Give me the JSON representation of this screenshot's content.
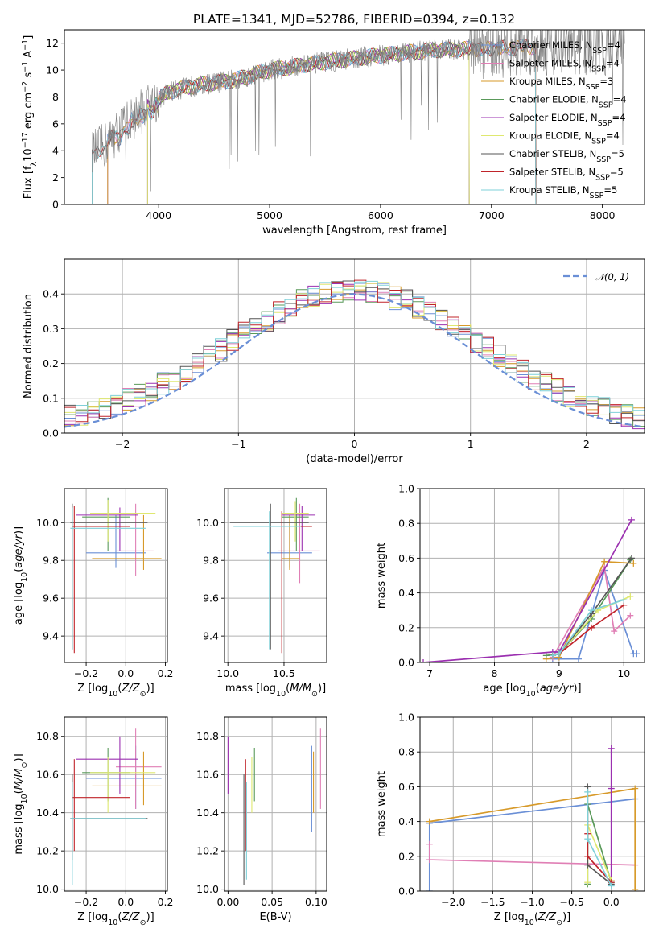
{
  "title": "PLATE=1341, MJD=52786, FIBERID=0394, z=0.132",
  "colors": {
    "Chabrier MILES": "#6a8fd6",
    "Salpeter MILES": "#e07fb5",
    "Kroupa MILES": "#d79a2a",
    "Chabrier ELODIE": "#5a9a5a",
    "Salpeter ELODIE": "#9b30b0",
    "Kroupa ELODIE": "#dfe870",
    "Chabrier STELIB": "#555555",
    "Salpeter STELIB": "#c0242a",
    "Kroupa STELIB": "#7fd0d8",
    "data": "#808080",
    "gaussian": "#6a8fd6",
    "orange": "#e07a28"
  },
  "chart_data": [
    {
      "id": "spectrum",
      "type": "line",
      "xlabel": "wavelength [Angstrom, rest frame]",
      "ylabel": "Flux [f_λ 10^-17 erg cm^-2 s^-1 A^-1]",
      "xlim": [
        3150,
        8380
      ],
      "ylim": [
        0,
        13
      ],
      "xticks": [
        4000,
        5000,
        6000,
        7000,
        8000
      ],
      "yticks": [
        0,
        2,
        4,
        6,
        8,
        10,
        12
      ],
      "grid": false,
      "legend_position": "right",
      "legend": [
        {
          "name": "Chabrier MILES",
          "sub": "4"
        },
        {
          "name": "Salpeter MILES",
          "sub": "4"
        },
        {
          "name": "Kroupa MILES",
          "sub": "3"
        },
        {
          "name": "Chabrier ELODIE",
          "sub": "4"
        },
        {
          "name": "Salpeter ELODIE",
          "sub": "4"
        },
        {
          "name": "Kroupa ELODIE",
          "sub": "4"
        },
        {
          "name": "Chabrier STELIB",
          "sub": "5"
        },
        {
          "name": "Salpeter STELIB",
          "sub": "5"
        },
        {
          "name": "Kroupa STELIB",
          "sub": "5"
        }
      ],
      "data_trend": {
        "x": [
          3400,
          3500,
          3700,
          3900,
          4100,
          4300,
          4700,
          5000,
          5500,
          6000,
          6500,
          7000,
          7500,
          8000,
          8200
        ],
        "y": [
          3.8,
          4.3,
          6.0,
          7.3,
          8.4,
          8.8,
          9.3,
          10.0,
          10.6,
          11.1,
          11.5,
          11.6,
          11.8,
          11.7,
          11.8
        ]
      },
      "model_ranges": [
        {
          "name": "Chabrier MILES",
          "x0": 3540,
          "x1": 7410
        },
        {
          "name": "Salpeter MILES",
          "x0": 3540,
          "x1": 7410
        },
        {
          "name": "Kroupa MILES",
          "x0": 3540,
          "x1": 7410
        },
        {
          "name": "Chabrier ELODIE",
          "x0": 3900,
          "x1": 6800
        },
        {
          "name": "Salpeter ELODIE",
          "x0": 3900,
          "x1": 6800
        },
        {
          "name": "Kroupa ELODIE",
          "x0": 3900,
          "x1": 6800
        },
        {
          "name": "Chabrier STELIB",
          "x0": 3400,
          "x1": 7400
        },
        {
          "name": "Salpeter STELIB",
          "x0": 3400,
          "x1": 7400
        },
        {
          "name": "Kroupa STELIB",
          "x0": 3400,
          "x1": 7400
        }
      ]
    },
    {
      "id": "residuals",
      "type": "histogram",
      "xlabel": "(data-model)/error",
      "ylabel": "Normed distribution",
      "xlim": [
        -2.5,
        2.5
      ],
      "ylim": [
        0,
        0.5
      ],
      "xticks": [
        -2,
        -1,
        0,
        1,
        2
      ],
      "xtick_labels": [
        "−2",
        "−1",
        "0",
        "1",
        "2"
      ],
      "yticks": [
        0,
        0.1,
        0.2,
        0.3,
        0.4
      ],
      "ytick_labels": [
        "0.0",
        "0.1",
        "0.2",
        "0.3",
        "0.4"
      ],
      "grid": true,
      "bin_width": 0.1,
      "legend": [
        {
          "name": "N(0,1)",
          "label": "𝒩(0, 1)"
        }
      ],
      "legend_position": "top-right",
      "gaussian": {
        "mean": 0,
        "sigma": 1
      }
    },
    {
      "id": "age-vs-Z",
      "type": "errorbar",
      "xlabel": "Z [log10(Z/Z⊙)]",
      "ylabel": "age [log10(age/yr)]",
      "xlim": [
        -0.31,
        0.21
      ],
      "ylim": [
        9.26,
        10.18
      ],
      "xticks": [
        -0.2,
        0.0,
        0.2
      ],
      "xtick_labels": [
        "−0.2",
        "0.0",
        "0.2"
      ],
      "yticks": [
        9.4,
        9.6,
        9.8,
        10.0
      ],
      "ytick_labels": [
        "9.4",
        "9.6",
        "9.8",
        "10.0"
      ],
      "grid": true,
      "points": [
        {
          "s": "Chabrier MILES",
          "x": -0.05,
          "y": 9.84,
          "xe": [
            -0.2,
            0.1
          ],
          "ye": [
            9.76,
            10.04
          ]
        },
        {
          "s": "Salpeter MILES",
          "x": 0.05,
          "y": 9.85,
          "xe": [
            -0.05,
            0.14
          ],
          "ye": [
            9.72,
            10.1
          ]
        },
        {
          "s": "Kroupa MILES",
          "x": 0.09,
          "y": 9.81,
          "xe": [
            -0.17,
            0.18
          ],
          "ye": [
            9.75,
            10.04
          ]
        },
        {
          "s": "Chabrier ELODIE",
          "x": -0.09,
          "y": 10.03,
          "xe": [
            -0.22,
            0.02
          ],
          "ye": [
            9.85,
            10.13
          ]
        },
        {
          "s": "Salpeter ELODIE",
          "x": -0.03,
          "y": 10.04,
          "xe": [
            -0.25,
            0.06
          ],
          "ye": [
            9.85,
            10.08
          ]
        },
        {
          "s": "Kroupa ELODIE",
          "x": -0.09,
          "y": 10.05,
          "xe": [
            -0.18,
            0.15
          ],
          "ye": [
            9.9,
            10.12
          ]
        },
        {
          "s": "Chabrier STELIB",
          "x": -0.27,
          "y": 10.0,
          "xe": [
            -0.28,
            0.11
          ],
          "ye": [
            9.33,
            10.1
          ]
        },
        {
          "s": "Salpeter STELIB",
          "x": -0.26,
          "y": 9.98,
          "xe": [
            -0.27,
            0.02
          ],
          "ye": [
            9.31,
            10.09
          ]
        },
        {
          "s": "Kroupa STELIB",
          "x": -0.27,
          "y": 9.97,
          "xe": [
            -0.28,
            0.1
          ],
          "ye": [
            9.33,
            10.08
          ]
        }
      ]
    },
    {
      "id": "age-vs-mass",
      "type": "errorbar",
      "xlabel": "mass [log10(M/M⊙)]",
      "ylabel": "",
      "xlim": [
        9.97,
        10.88
      ],
      "ylim": [
        9.26,
        10.18
      ],
      "xticks": [
        10.0,
        10.5
      ],
      "xtick_labels": [
        "10.0",
        "10.5"
      ],
      "yticks": [
        9.4,
        9.6,
        9.8,
        10.0
      ],
      "ytick_labels": [
        "9.4",
        "9.6",
        "9.8",
        "10.0"
      ],
      "grid": true,
      "points": [
        {
          "s": "Chabrier MILES",
          "x": 10.55,
          "y": 9.84,
          "xe": [
            10.35,
            10.75
          ],
          "ye": [
            9.76,
            10.04
          ]
        },
        {
          "s": "Salpeter MILES",
          "x": 10.64,
          "y": 9.85,
          "xe": [
            10.45,
            10.82
          ],
          "ye": [
            9.68,
            10.1
          ]
        },
        {
          "s": "Kroupa MILES",
          "x": 10.55,
          "y": 9.81,
          "xe": [
            10.48,
            10.64
          ],
          "ye": [
            9.75,
            10.04
          ]
        },
        {
          "s": "Chabrier ELODIE",
          "x": 10.61,
          "y": 10.03,
          "xe": [
            10.48,
            10.72
          ],
          "ye": [
            9.85,
            10.13
          ]
        },
        {
          "s": "Salpeter ELODIE",
          "x": 10.66,
          "y": 10.04,
          "xe": [
            10.48,
            10.78
          ],
          "ye": [
            9.85,
            10.09
          ]
        },
        {
          "s": "Kroupa ELODIE",
          "x": 10.6,
          "y": 10.05,
          "xe": [
            10.48,
            10.72
          ],
          "ye": [
            9.9,
            10.11
          ]
        },
        {
          "s": "Chabrier STELIB",
          "x": 10.38,
          "y": 10.0,
          "xe": [
            10.02,
            10.72
          ],
          "ye": [
            9.33,
            10.1
          ]
        },
        {
          "s": "Salpeter STELIB",
          "x": 10.48,
          "y": 9.98,
          "xe": [
            10.2,
            10.75
          ],
          "ye": [
            9.31,
            10.06
          ]
        },
        {
          "s": "Kroupa STELIB",
          "x": 10.37,
          "y": 9.98,
          "xe": [
            10.05,
            10.65
          ],
          "ye": [
            9.33,
            10.06
          ]
        }
      ]
    },
    {
      "id": "weight-vs-age",
      "type": "line",
      "xlabel": "age [log10(age/yr)]",
      "ylabel": "mass weight",
      "xlim": [
        6.85,
        10.32
      ],
      "ylim": [
        0,
        1.0
      ],
      "xticks": [
        7,
        8,
        9,
        10
      ],
      "xtick_labels": [
        "7",
        "8",
        "9",
        "10"
      ],
      "yticks": [
        0,
        0.2,
        0.4,
        0.6,
        0.8,
        1.0
      ],
      "ytick_labels": [
        "0.0",
        "0.2",
        "0.4",
        "0.6",
        "0.8",
        "1.0"
      ],
      "grid": true,
      "series": [
        {
          "s": "Chabrier MILES",
          "x": [
            8.9,
            9.3,
            9.7,
            10.15,
            10.2
          ],
          "y": [
            0.02,
            0.02,
            0.53,
            0.05,
            0.05
          ]
        },
        {
          "s": "Salpeter MILES",
          "x": [
            8.9,
            9.7,
            9.85,
            10.1
          ],
          "y": [
            0.03,
            0.55,
            0.18,
            0.27
          ]
        },
        {
          "s": "Kroupa MILES",
          "x": [
            8.8,
            9.0,
            9.7,
            10.15
          ],
          "y": [
            0.02,
            0.03,
            0.58,
            0.57
          ]
        },
        {
          "s": "Chabrier ELODIE",
          "x": [
            8.8,
            9.0,
            9.5,
            10.1
          ],
          "y": [
            0.04,
            0.05,
            0.25,
            0.59
          ]
        },
        {
          "s": "Salpeter ELODIE",
          "x": [
            6.9,
            8.9,
            9.0,
            10.12
          ],
          "y": [
            0.0,
            0.06,
            0.06,
            0.82
          ]
        },
        {
          "s": "Kroupa ELODIE",
          "x": [
            8.9,
            9.0,
            9.6,
            10.1
          ],
          "y": [
            0.04,
            0.05,
            0.3,
            0.38
          ]
        },
        {
          "s": "Chabrier STELIB",
          "x": [
            8.9,
            9.0,
            9.5,
            10.12
          ],
          "y": [
            0.04,
            0.05,
            0.28,
            0.6
          ]
        },
        {
          "s": "Salpeter STELIB",
          "x": [
            8.9,
            9.0,
            9.5,
            10.0
          ],
          "y": [
            0.04,
            0.05,
            0.2,
            0.33
          ]
        },
        {
          "s": "Kroupa STELIB",
          "x": [
            8.9,
            9.0,
            9.5,
            10.0
          ],
          "y": [
            0.04,
            0.05,
            0.3,
            0.36
          ]
        }
      ]
    },
    {
      "id": "mass-vs-Z",
      "type": "errorbar",
      "xlabel": "Z [log10(Z/Z⊙)]",
      "ylabel": "mass [log10(M/M⊙)]",
      "xlim": [
        -0.31,
        0.21
      ],
      "ylim": [
        9.99,
        10.9
      ],
      "xticks": [
        -0.2,
        0.0,
        0.2
      ],
      "xtick_labels": [
        "−0.2",
        "0.0",
        "0.2"
      ],
      "yticks": [
        10.0,
        10.2,
        10.4,
        10.6,
        10.8
      ],
      "ytick_labels": [
        "10.0",
        "10.2",
        "10.4",
        "10.6",
        "10.8"
      ],
      "grid": true,
      "points": [
        {
          "s": "Chabrier MILES",
          "x": 0.05,
          "y": 10.58,
          "xe": [
            -0.2,
            0.18
          ],
          "ye": [
            10.42,
            10.75
          ]
        },
        {
          "s": "Salpeter MILES",
          "x": 0.05,
          "y": 10.64,
          "xe": [
            -0.05,
            0.18
          ],
          "ye": [
            10.42,
            10.84
          ]
        },
        {
          "s": "Kroupa MILES",
          "x": 0.09,
          "y": 10.54,
          "xe": [
            -0.17,
            0.18
          ],
          "ye": [
            10.44,
            10.72
          ]
        },
        {
          "s": "Chabrier ELODIE",
          "x": -0.09,
          "y": 10.61,
          "xe": [
            -0.22,
            0.02
          ],
          "ye": [
            10.46,
            10.74
          ]
        },
        {
          "s": "Salpeter ELODIE",
          "x": -0.03,
          "y": 10.68,
          "xe": [
            -0.25,
            0.06
          ],
          "ye": [
            10.5,
            10.8
          ]
        },
        {
          "s": "Kroupa ELODIE",
          "x": -0.09,
          "y": 10.61,
          "xe": [
            -0.18,
            0.15
          ],
          "ye": [
            10.4,
            10.69
          ]
        },
        {
          "s": "Chabrier STELIB",
          "x": -0.27,
          "y": 10.37,
          "xe": [
            -0.28,
            0.11
          ],
          "ye": [
            10.15,
            10.6
          ]
        },
        {
          "s": "Salpeter STELIB",
          "x": -0.26,
          "y": 10.48,
          "xe": [
            -0.27,
            0.02
          ],
          "ye": [
            10.2,
            10.68
          ]
        },
        {
          "s": "Kroupa STELIB",
          "x": -0.27,
          "y": 10.37,
          "xe": [
            -0.28,
            0.1
          ],
          "ye": [
            10.02,
            10.56
          ]
        }
      ]
    },
    {
      "id": "mass-vs-EBV",
      "type": "errorbar",
      "xlabel": "E(B-V)",
      "ylabel": "",
      "xlim": [
        -0.004,
        0.112
      ],
      "ylim": [
        9.99,
        10.9
      ],
      "xticks": [
        0.0,
        0.05,
        0.1
      ],
      "xtick_labels": [
        "0.00",
        "0.05",
        "0.10"
      ],
      "yticks": [
        10.0,
        10.2,
        10.4,
        10.6,
        10.8
      ],
      "ytick_labels": [
        "10.0",
        "10.2",
        "10.4",
        "10.6",
        "10.8"
      ],
      "grid": true,
      "points": [
        {
          "s": "Chabrier MILES",
          "x": 0.095,
          "y": 10.58,
          "ye": [
            10.3,
            10.75
          ]
        },
        {
          "s": "Salpeter MILES",
          "x": 0.105,
          "y": 10.64,
          "ye": [
            10.42,
            10.84
          ]
        },
        {
          "s": "Kroupa MILES",
          "x": 0.097,
          "y": 10.54,
          "ye": [
            10.4,
            10.72
          ]
        },
        {
          "s": "Chabrier ELODIE",
          "x": 0.03,
          "y": 10.61,
          "ye": [
            10.46,
            10.74
          ]
        },
        {
          "s": "Salpeter ELODIE",
          "x": 0.0,
          "y": 10.68,
          "ye": [
            10.5,
            10.8
          ]
        },
        {
          "s": "Kroupa ELODIE",
          "x": 0.027,
          "y": 10.61,
          "ye": [
            10.4,
            10.69
          ]
        },
        {
          "s": "Chabrier STELIB",
          "x": 0.018,
          "y": 10.37,
          "ye": [
            10.02,
            10.6
          ]
        },
        {
          "s": "Salpeter STELIB",
          "x": 0.02,
          "y": 10.48,
          "ye": [
            10.2,
            10.68
          ]
        },
        {
          "s": "Kroupa STELIB",
          "x": 0.021,
          "y": 10.37,
          "ye": [
            10.05,
            10.56
          ]
        }
      ]
    },
    {
      "id": "weight-vs-Z",
      "type": "line",
      "xlabel": "Z [log10(Z/Z⊙)]",
      "ylabel": "mass weight",
      "xlim": [
        -2.42,
        0.42
      ],
      "ylim": [
        0,
        1.0
      ],
      "xticks": [
        -2.0,
        -1.5,
        -1.0,
        -0.5,
        0.0
      ],
      "xtick_labels": [
        "−2.0",
        "−1.5",
        "−1.0",
        "−0.5",
        "0.0"
      ],
      "yticks": [
        0,
        0.2,
        0.4,
        0.6,
        0.8,
        1.0
      ],
      "ytick_labels": [
        "0.0",
        "0.2",
        "0.4",
        "0.6",
        "0.8",
        "1.0"
      ],
      "grid": true,
      "series": [
        {
          "s": "Chabrier MILES",
          "x": [
            -2.3,
            -2.3,
            0.3
          ],
          "y": [
            0.0,
            0.39,
            0.53
          ]
        },
        {
          "s": "Salpeter MILES",
          "x": [
            -2.3,
            -2.3,
            0.3
          ],
          "y": [
            0.27,
            0.18,
            0.15
          ]
        },
        {
          "s": "Kroupa MILES",
          "x": [
            -2.3,
            0.3,
            0.3
          ],
          "y": [
            0.4,
            0.59,
            0.01
          ]
        },
        {
          "s": "Chabrier ELODIE",
          "x": [
            -0.3,
            -0.3,
            0.0
          ],
          "y": [
            0.04,
            0.5,
            0.05
          ]
        },
        {
          "s": "Salpeter ELODIE",
          "x": [
            0.0,
            0.0,
            0.0
          ],
          "y": [
            0.82,
            0.59,
            0.06
          ]
        },
        {
          "s": "Kroupa ELODIE",
          "x": [
            -0.3,
            -0.3,
            0.0
          ],
          "y": [
            0.05,
            0.38,
            0.06
          ]
        },
        {
          "s": "Chabrier STELIB",
          "x": [
            -0.3,
            -0.3,
            0.0
          ],
          "y": [
            0.6,
            0.15,
            0.04
          ]
        },
        {
          "s": "Salpeter STELIB",
          "x": [
            -0.3,
            -0.3,
            0.0
          ],
          "y": [
            0.33,
            0.2,
            0.05
          ]
        },
        {
          "s": "Kroupa STELIB",
          "x": [
            -0.3,
            -0.3,
            0.0
          ],
          "y": [
            0.57,
            0.3,
            0.03
          ]
        }
      ]
    }
  ]
}
